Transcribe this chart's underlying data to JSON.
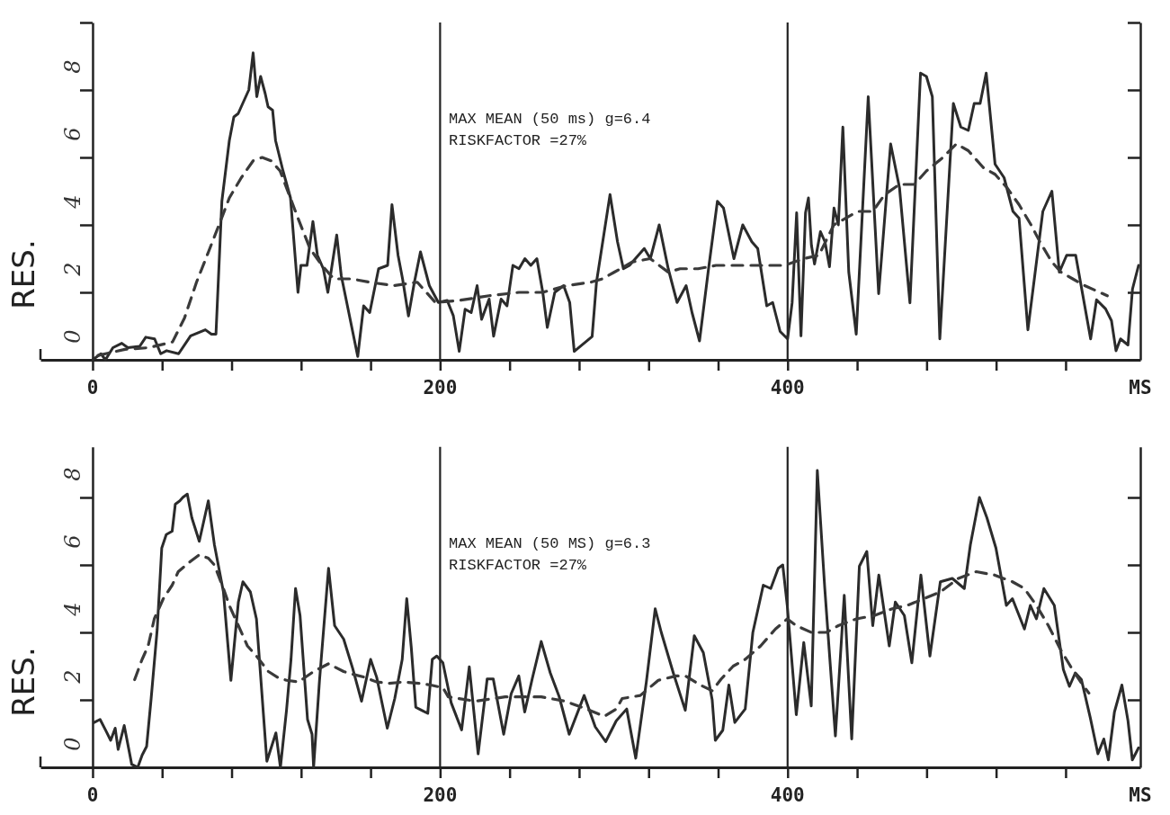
{
  "chart_data": [
    {
      "type": "line",
      "ylabel": "RES.",
      "xlabel": "MS",
      "xlim": [
        -30,
        603
      ],
      "ylim": [
        0,
        10
      ],
      "xticks": [
        0,
        {
          "value": 40,
          "label": null
        },
        {
          "value": 80,
          "label": null
        },
        {
          "value": 120,
          "label": null
        },
        {
          "value": 160,
          "label": null
        },
        200,
        {
          "value": 240,
          "label": null
        },
        {
          "value": 280,
          "label": null
        },
        {
          "value": 320,
          "label": null
        },
        {
          "value": 360,
          "label": null
        },
        400,
        {
          "value": 440,
          "label": null
        },
        {
          "value": 480,
          "label": null
        },
        {
          "value": 520,
          "label": null
        },
        {
          "value": 560,
          "label": null
        }
      ],
      "yticks": [
        0,
        2,
        4,
        6,
        8,
        {
          "value": 10,
          "label": null
        }
      ],
      "grid": false,
      "ref_lines": [
        {
          "axis": "x",
          "value": 200,
          "color": "#222222"
        },
        {
          "axis": "x",
          "value": 400,
          "color": "#222222"
        }
      ],
      "annotations": [
        "MAX MEAN (50 ms) g=6.4",
        "RISKFACTOR =27%"
      ],
      "series": [
        {
          "color": "#2b2b2b",
          "line_style": "solid",
          "x": [
            0,
            4.8,
            7.4,
            11.7,
            16.8,
            20.3,
            27.1,
            30.6,
            35.7,
            39.2,
            42.6,
            49.5,
            56.4,
            64.9,
            68.4,
            71,
            74.4,
            78.7,
            81.3,
            83.8,
            86.4,
            89.9,
            92.4,
            94.5,
            96.7,
            99.3,
            101,
            103.6,
            105.3,
            109.6,
            113.9,
            118.2,
            119.9,
            123.4,
            126.8,
            129.4,
            132.8,
            135.4,
            140.5,
            143.1,
            152.6,
            156,
            159.5,
            164.6,
            169.8,
            172.3,
            175.8,
            178.4,
            181.8,
            185.2,
            188.7,
            193.8,
            199,
            204.1,
            207.6,
            211,
            214.4,
            217.9,
            221.3,
            223.9,
            228.2,
            230.8,
            235.1,
            238.5,
            241.9,
            245.4,
            248.8,
            252.2,
            255.7,
            259.1,
            261.7,
            266,
            271.1,
            274.6,
            277.2,
            281.4,
            287.5,
            290,
            297.8,
            302.1,
            305.5,
            309,
            314.1,
            317.5,
            321,
            326.1,
            331.3,
            336.4,
            341.6,
            345,
            349.3,
            354.5,
            359.6,
            363.1,
            369.1,
            374.2,
            379.4,
            382.8,
            388,
            391.4,
            395.7,
            400,
            402.6,
            405.2,
            407.7,
            410.3,
            412,
            413.7,
            415.5,
            418.9,
            421.5,
            424.1,
            426.7,
            429.2,
            431.8,
            435.2,
            439.5,
            446.4,
            452.4,
            459.3,
            464.4,
            470.4,
            476.5,
            479.9,
            483.3,
            487.6,
            495.4,
            499.7,
            504,
            507.4,
            510.8,
            514.3,
            519.4,
            524.6,
            529.7,
            533.2,
            538.3,
            546.9,
            552.1,
            556.4,
            560.6,
            565.8,
            574.4,
            577.8,
            583,
            586.4,
            589,
            591.6,
            595.9,
            598.5,
            602
          ],
          "values": [
            0,
            0.18,
            0,
            0.36,
            0.49,
            0.36,
            0.4,
            0.67,
            0.62,
            0.18,
            0.27,
            0.18,
            0.71,
            0.89,
            0.76,
            0.76,
            4.7,
            6.5,
            7.2,
            7.3,
            7.6,
            8,
            9.1,
            7.8,
            8.4,
            7.9,
            7.5,
            7.4,
            6.5,
            5.6,
            4.8,
            2,
            2.8,
            2.8,
            4.1,
            3.1,
            2.7,
            2,
            3.7,
            2.5,
            0.1,
            1.6,
            1.4,
            2.7,
            2.8,
            4.6,
            3.1,
            2.4,
            1.3,
            2.3,
            3.2,
            2.2,
            1.7,
            1.76,
            1.31,
            0.25,
            1.5,
            1.4,
            2.2,
            1.2,
            1.8,
            0.7,
            1.8,
            1.6,
            2.8,
            2.7,
            3,
            2.8,
            3,
            2,
            0.96,
            2,
            2.2,
            1.7,
            0.25,
            0.43,
            0.69,
            2.3,
            4.9,
            3.5,
            2.7,
            2.8,
            3.1,
            3.3,
            3,
            4,
            2.7,
            1.7,
            2.2,
            1.4,
            0.56,
            2.7,
            4.7,
            4.5,
            3,
            4,
            3.5,
            3.3,
            1.6,
            1.7,
            0.84,
            0.62,
            1.69,
            4.36,
            0.71,
            4.36,
            4.8,
            3.4,
            2.84,
            3.8,
            3.5,
            2.76,
            4.5,
            4,
            6.9,
            2.6,
            0.76,
            7.8,
            1.96,
            6.4,
            5.1,
            1.69,
            8.5,
            8.4,
            7.8,
            0.62,
            7.6,
            6.9,
            6.8,
            7.6,
            7.6,
            8.5,
            5.8,
            5.4,
            4.4,
            4.2,
            0.89,
            4.4,
            5,
            2.6,
            3.1,
            3.1,
            0.62,
            1.78,
            1.51,
            1.16,
            0.27,
            0.62,
            0.44,
            2.1,
            2.8
          ]
        },
        {
          "color": "#3a3a3a",
          "line_style": "dashed",
          "x": [
            3.1,
            18.6,
            32.3,
            46,
            52.9,
            59.8,
            66.7,
            73.5,
            78.7,
            85.6,
            92.4,
            97.6,
            102.7,
            107.9,
            113.1,
            118.2,
            125.1,
            132,
            138.8,
            149.1,
            159.5,
            173.2,
            186.9,
            197.3,
            211,
            228.2,
            245.4,
            259.1,
            272.9,
            286.6,
            293.4,
            300.3,
            310.6,
            320.9,
            331.3,
            338.1,
            348.5,
            358.8,
            372.5,
            386.3,
            398.3,
            409.5,
            418,
            426.6,
            440.4,
            449,
            455.9,
            464.4,
            473,
            479.9,
            488.5,
            497.1,
            504,
            512.6,
            519.4,
            526.3,
            533.2,
            540.1,
            545.2,
            552.1,
            557.3,
            564.1,
            571,
            584
          ],
          "values": [
            0.13,
            0.31,
            0.36,
            0.53,
            1.24,
            2.3,
            3.2,
            4.1,
            4.8,
            5.4,
            5.9,
            6,
            5.9,
            5.6,
            4.9,
            4.2,
            3.3,
            2.8,
            2.4,
            2.4,
            2.3,
            2.2,
            2.3,
            1.7,
            1.76,
            1.9,
            2,
            2,
            2.2,
            2.3,
            2.4,
            2.6,
            2.9,
            3,
            2.6,
            2.7,
            2.7,
            2.8,
            2.8,
            2.8,
            2.8,
            3,
            3.1,
            4,
            4.4,
            4.4,
            4.9,
            5.2,
            5.2,
            5.6,
            5.96,
            6.4,
            6.2,
            5.7,
            5.5,
            5.1,
            4.6,
            4,
            3.5,
            2.9,
            2.6,
            2.4,
            2.2,
            1.9
          ]
        }
      ]
    },
    {
      "type": "line",
      "ylabel": "RES.",
      "xlabel": "MS",
      "xlim": [
        -30,
        603
      ],
      "ylim": [
        0,
        9.5
      ],
      "xticks": [
        0,
        {
          "value": 40,
          "label": null
        },
        {
          "value": 80,
          "label": null
        },
        {
          "value": 120,
          "label": null
        },
        {
          "value": 160,
          "label": null
        },
        200,
        {
          "value": 240,
          "label": null
        },
        {
          "value": 280,
          "label": null
        },
        {
          "value": 320,
          "label": null
        },
        {
          "value": 360,
          "label": null
        },
        400,
        {
          "value": 440,
          "label": null
        },
        {
          "value": 480,
          "label": null
        },
        {
          "value": 520,
          "label": null
        },
        {
          "value": 560,
          "label": null
        }
      ],
      "yticks": [
        0,
        2,
        4,
        6,
        8
      ],
      "grid": false,
      "ref_lines": [
        {
          "axis": "x",
          "value": 200,
          "color": "#222222"
        },
        {
          "axis": "x",
          "value": 400,
          "color": "#222222"
        }
      ],
      "annotations": [
        "MAX MEAN (50 MS) g=6.3",
        "RISKFACTOR =27%"
      ],
      "series": [
        {
          "color": "#2b2b2b",
          "line_style": "solid",
          "x": [
            0.9,
            4.3,
            7.8,
            10.4,
            13,
            14.7,
            18.2,
            22.5,
            26,
            28.5,
            31.1,
            33.7,
            37.2,
            39.8,
            42.4,
            45.8,
            47.6,
            50.2,
            51.9,
            54.5,
            57.1,
            61.4,
            66.6,
            70.1,
            75.3,
            79.6,
            83.9,
            86.5,
            90.8,
            94.3,
            100.3,
            105.5,
            108.1,
            111.6,
            114.2,
            116.8,
            119.4,
            123.7,
            126.3,
            127.2,
            130.6,
            135.8,
            139.3,
            144.5,
            149.7,
            154.8,
            160,
            163.5,
            169.6,
            173.9,
            178.2,
            180.8,
            183.4,
            186,
            189.4,
            192.9,
            195.5,
            198.1,
            201.6,
            206.4,
            212.4,
            216.8,
            221.9,
            227.1,
            230.6,
            236.6,
            240.9,
            245.3,
            248.7,
            253,
            258.2,
            263.4,
            268.5,
            274.3,
            282.9,
            289.3,
            295.3,
            301.4,
            307.4,
            312.6,
            318.7,
            323.8,
            327.3,
            334.2,
            341.1,
            346.3,
            351.5,
            356.6,
            358.4,
            362.7,
            366.2,
            369.6,
            375.6,
            380,
            386,
            390.3,
            394.6,
            397.2,
            399.8,
            405,
            409.3,
            413.6,
            417.1,
            421.4,
            427.5,
            432.6,
            436.9,
            441.3,
            445.6,
            449,
            452.5,
            458.5,
            462,
            467.2,
            471.5,
            476.7,
            481.9,
            487.9,
            494.8,
            501.7,
            505.2,
            510.4,
            514.7,
            519.9,
            525.9,
            529.4,
            536.3,
            539.7,
            543.2,
            547.5,
            553.5,
            558.7,
            562.2,
            565.6,
            569.1,
            574.2,
            578.6,
            582,
            584.6,
            588.1,
            592.4,
            595.9,
            598.4,
            602
          ],
          "values": [
            1.33,
            1.42,
            1.07,
            0.8,
            1.16,
            0.53,
            1.24,
            0.09,
            0,
            0.36,
            0.62,
            2.04,
            4.1,
            6.5,
            6.9,
            7,
            7.8,
            7.9,
            8,
            8.1,
            7.4,
            6.7,
            7.9,
            6.6,
            5.2,
            2.58,
            4.9,
            5.5,
            5.2,
            4.4,
            0.18,
            1.02,
            0,
            1.69,
            3.2,
            5.3,
            4.5,
            1.42,
            0.98,
            0,
            2.58,
            5.9,
            4.2,
            3.8,
            2.93,
            1.96,
            3.2,
            2.67,
            1.16,
            2.04,
            3.2,
            5,
            3.56,
            1.78,
            1.69,
            1.6,
            3.2,
            3.3,
            3.1,
            1.91,
            1.11,
            2.98,
            0.4,
            2.62,
            2.62,
            0.98,
            2.18,
            2.71,
            1.64,
            2.62,
            3.73,
            2.8,
            2.1,
            0.98,
            2.13,
            1.2,
            0.76,
            1.38,
            1.73,
            0.27,
            2.53,
            4.7,
            4,
            2.8,
            1.69,
            3.9,
            3.4,
            2,
            0.8,
            1.1,
            2.44,
            1.33,
            1.73,
            4,
            5.4,
            5.3,
            5.9,
            6,
            4.8,
            1.56,
            3.7,
            1.82,
            8.8,
            5.3,
            0.93,
            5.1,
            0.84,
            5.96,
            6.4,
            4.2,
            5.7,
            3.6,
            4.9,
            4.5,
            3.1,
            5.7,
            3.3,
            5.5,
            5.6,
            5.3,
            6.6,
            8,
            7.4,
            6.5,
            4.8,
            5,
            4.1,
            4.8,
            4.4,
            5.3,
            4.8,
            2.9,
            2.4,
            2.8,
            2.6,
            1.47,
            0.4,
            0.84,
            0.22,
            1.64,
            2.44,
            1.38,
            0.22,
            0.58
          ]
        },
        {
          "color": "#3a3a3a",
          "line_style": "dashed",
          "x": [
            24.2,
            28.5,
            32,
            35.5,
            40.7,
            45.8,
            49.3,
            56.2,
            61.4,
            66.6,
            70.1,
            75.3,
            78.7,
            83.9,
            89.1,
            94.3,
            101.2,
            106.4,
            111.6,
            118.5,
            127.2,
            135.8,
            144.5,
            149.7,
            156.6,
            163.5,
            170.4,
            179.1,
            187.7,
            194.6,
            201.6,
            204.7,
            220.2,
            237.5,
            258.2,
            272,
            284.1,
            294.5,
            301.4,
            304.8,
            315.2,
            325.6,
            335.9,
            341.1,
            349.7,
            356.6,
            361.8,
            368.7,
            375.6,
            384.5,
            393,
            399.8,
            405,
            413.6,
            422.3,
            429.2,
            439.6,
            449.9,
            460.3,
            468.9,
            477.5,
            487.9,
            498.3,
            508.6,
            519,
            529.4,
            536.3,
            543.2,
            550.1,
            557,
            563.9,
            569.1,
            573.4
          ],
          "values": [
            2.6,
            3.2,
            3.6,
            4.4,
            5,
            5.4,
            5.8,
            6.1,
            6.3,
            6.2,
            6,
            5.3,
            4.8,
            4.2,
            3.6,
            3.3,
            2.84,
            2.67,
            2.58,
            2.53,
            2.84,
            3.07,
            2.84,
            2.76,
            2.67,
            2.53,
            2.49,
            2.53,
            2.49,
            2.44,
            2.36,
            2.09,
            1.96,
            2.09,
            2.09,
            1.96,
            1.73,
            1.51,
            1.73,
            2.04,
            2.13,
            2.58,
            2.71,
            2.71,
            2.44,
            2.27,
            2.62,
            3,
            3.2,
            3.6,
            4.1,
            4.4,
            4.2,
            4,
            4,
            4.2,
            4.4,
            4.5,
            4.7,
            4.8,
            4.98,
            5.2,
            5.6,
            5.8,
            5.7,
            5.5,
            5.3,
            4.8,
            4.2,
            3.5,
            2.9,
            2.5,
            2.2
          ]
        }
      ]
    }
  ]
}
